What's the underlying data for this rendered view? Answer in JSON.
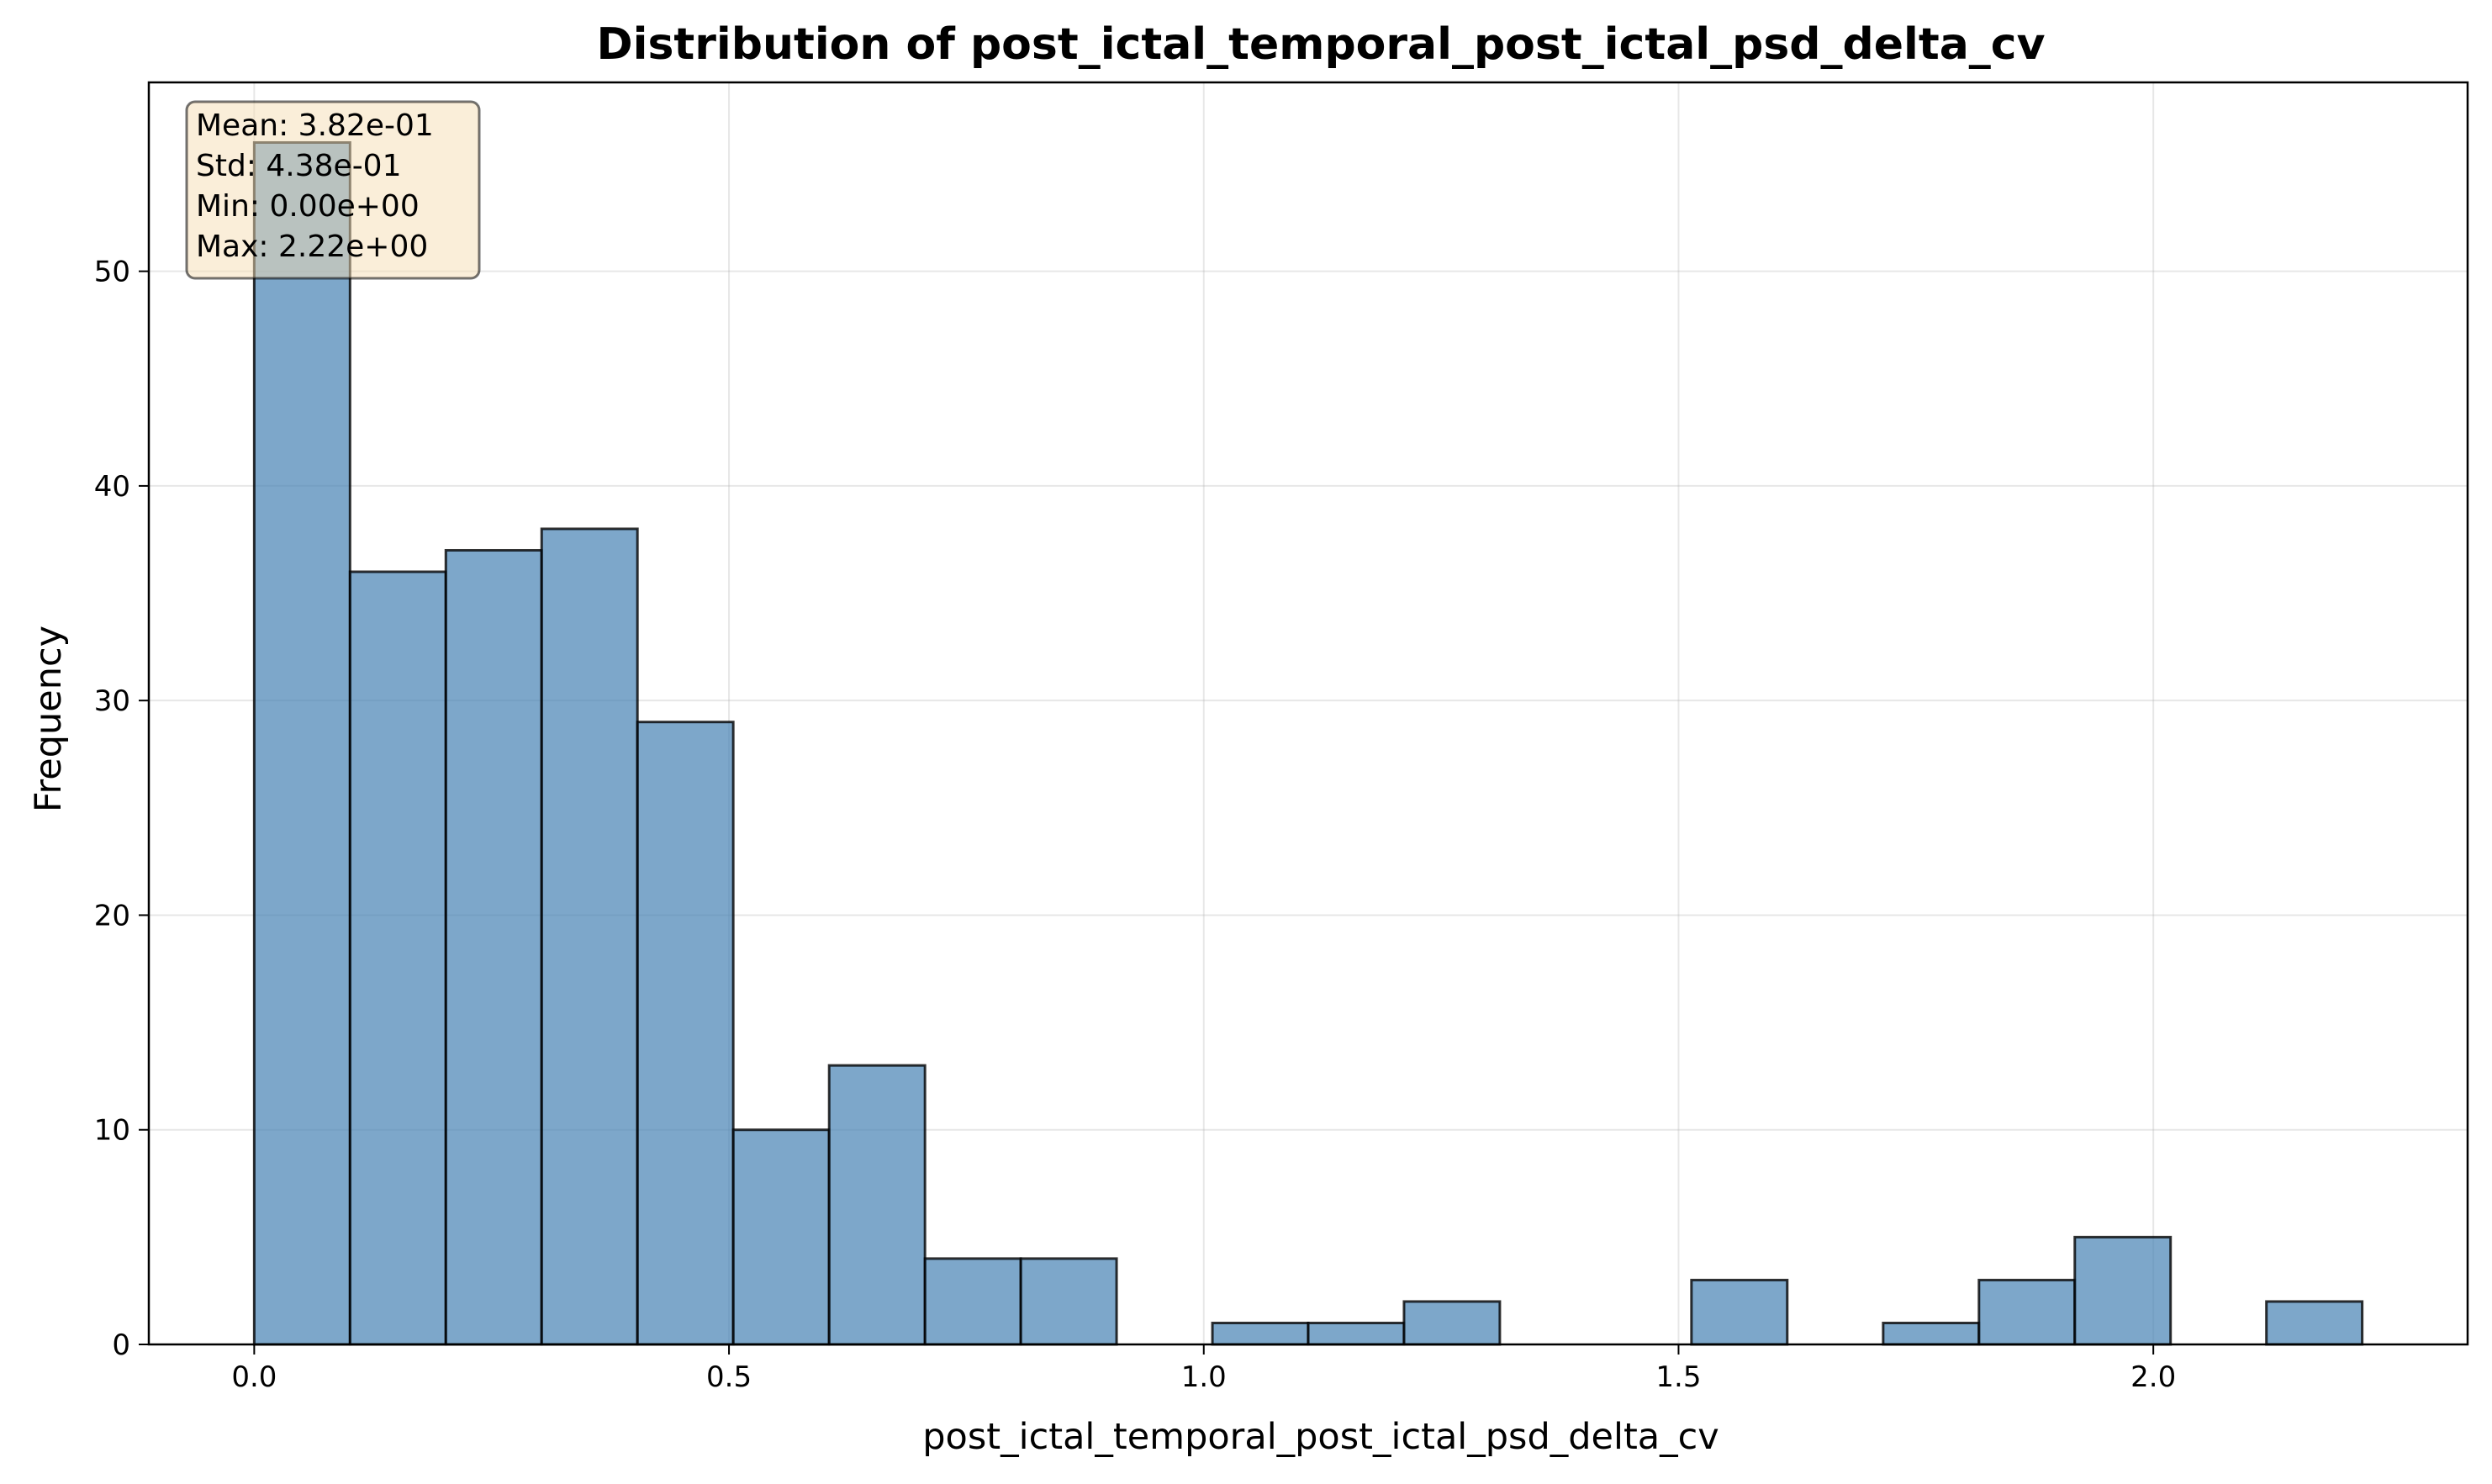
{
  "chart_data": {
    "type": "bar",
    "title": "Distribution of post_ictal_temporal_post_ictal_psd_delta_cv",
    "xlabel": "post_ictal_temporal_post_ictal_psd_delta_cv",
    "ylabel": "Frequency",
    "xlim": [
      -0.111,
      2.331
    ],
    "ylim": [
      0,
      58.8
    ],
    "xticks": [
      0.0,
      0.5,
      1.0,
      1.5,
      2.0
    ],
    "xtick_labels": [
      "0.0",
      "0.5",
      "1.0",
      "1.5",
      "2.0"
    ],
    "yticks": [
      0,
      10,
      20,
      30,
      40,
      50
    ],
    "ytick_labels": [
      "0",
      "10",
      "20",
      "30",
      "40",
      "50"
    ],
    "grid": true,
    "bin_width": 0.1009,
    "bin_starts": [
      0.0,
      0.1009,
      0.2018,
      0.3027,
      0.4036,
      0.5045,
      0.6055,
      0.7064,
      0.8073,
      0.9082,
      1.0091,
      1.11,
      1.2109,
      1.3118,
      1.4127,
      1.5136,
      1.6145,
      1.7155,
      1.8164,
      1.9173,
      2.0182,
      2.1191
    ],
    "counts": [
      56,
      36,
      37,
      38,
      29,
      10,
      13,
      4,
      4,
      0,
      1,
      1,
      2,
      0,
      0,
      3,
      0,
      1,
      3,
      5,
      0,
      2
    ],
    "bar_color": "#4682b4",
    "edge_color": "#000000",
    "stats_box": {
      "mean": "Mean: 3.82e-01",
      "std": "Std: 4.38e-01",
      "min": "Min: 0.00e+00",
      "max": "Max: 2.22e+00",
      "background": "#f5deb3"
    }
  }
}
